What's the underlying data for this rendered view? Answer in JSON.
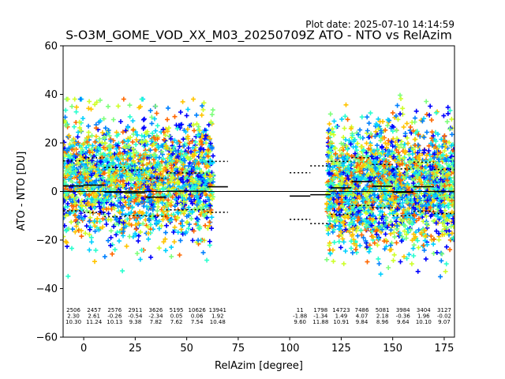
{
  "plot_date": "Plot date: 2025-07-10 14:14:59",
  "chart_data": {
    "type": "scatter",
    "title": "S-O3M_GOME_VOD_XX_M03_20250709Z ATO - NTO vs RelAzim",
    "xlabel": "RelAzim [degree]",
    "ylabel": "ATO - NTO [DU]",
    "xlim": [
      -10,
      180
    ],
    "ylim": [
      -60,
      60
    ],
    "xticks": [
      0,
      25,
      50,
      75,
      100,
      125,
      150,
      175
    ],
    "yticks": [
      -60,
      -40,
      -20,
      0,
      20,
      40,
      60
    ],
    "zero_line": 0,
    "bins": [
      {
        "x0": -10,
        "x1": 0,
        "count": "2506",
        "mean": "2.30",
        "std": "10.30",
        "label_x": -5
      },
      {
        "x0": 0,
        "x1": 10,
        "count": "2457",
        "mean": "2.61",
        "std": "11.24",
        "label_x": 5
      },
      {
        "x0": 10,
        "x1": 20,
        "count": "2576",
        "mean": "-0.26",
        "std": "10.13",
        "label_x": 15
      },
      {
        "x0": 20,
        "x1": 30,
        "count": "2911",
        "mean": "-0.54",
        "std": "9.38",
        "label_x": 25
      },
      {
        "x0": 30,
        "x1": 40,
        "count": "3626",
        "mean": "-2.34",
        "std": "7.82",
        "label_x": 35
      },
      {
        "x0": 40,
        "x1": 50,
        "count": "5195",
        "mean": "0.05",
        "std": "7.62",
        "label_x": 45
      },
      {
        "x0": 50,
        "x1": 60,
        "count": "10626",
        "mean": "0.06",
        "std": "7.54",
        "label_x": 55
      },
      {
        "x0": 60,
        "x1": 70,
        "count": "13941",
        "mean": "1.92",
        "std": "10.48",
        "label_x": 65
      },
      {
        "x0": 100,
        "x1": 110,
        "count": "11",
        "mean": "-1.88",
        "std": "9.60",
        "label_x": 105
      },
      {
        "x0": 110,
        "x1": 120,
        "count": "1798",
        "mean": "-1.34",
        "std": "11.88",
        "label_x": 115
      },
      {
        "x0": 120,
        "x1": 130,
        "count": "14723",
        "mean": "1.49",
        "std": "10.91",
        "label_x": 125
      },
      {
        "x0": 130,
        "x1": 140,
        "count": "7486",
        "mean": "4.07",
        "std": "9.84",
        "label_x": 135
      },
      {
        "x0": 140,
        "x1": 150,
        "count": "5081",
        "mean": "2.18",
        "std": "8.96",
        "label_x": 145
      },
      {
        "x0": 150,
        "x1": 160,
        "count": "3984",
        "mean": "-0.36",
        "std": "9.64",
        "label_x": 155
      },
      {
        "x0": 160,
        "x1": 170,
        "count": "3404",
        "mean": "1.96",
        "std": "10.10",
        "label_x": 165
      },
      {
        "x0": 170,
        "x1": 180,
        "count": "3127",
        "mean": "-0.02",
        "std": "9.07",
        "label_x": 175
      }
    ],
    "clusters": [
      {
        "x0": -10,
        "x1": 63,
        "center": 5,
        "spread_lo": -30,
        "spread_hi": 30
      },
      {
        "x0": 118,
        "x1": 180,
        "center": 2,
        "spread_lo": -30,
        "spread_hi": 34
      }
    ],
    "colormap": [
      "#0000ff",
      "#0080ff",
      "#00d0ff",
      "#29ffce",
      "#7dff7a",
      "#ceff29",
      "#ffc400",
      "#ff6800"
    ],
    "grid": false,
    "legend": "none"
  }
}
